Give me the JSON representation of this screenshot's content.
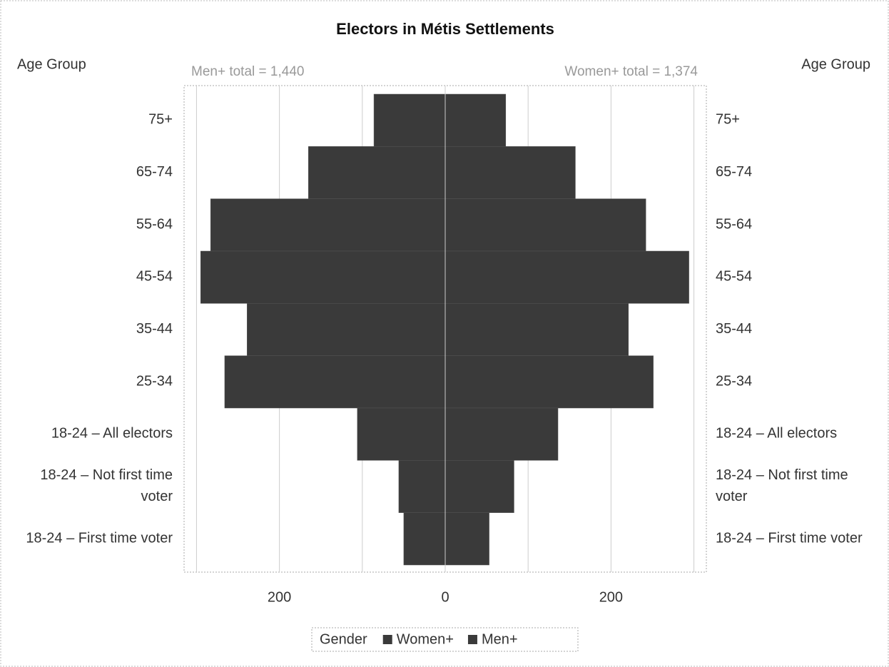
{
  "chart_data": {
    "type": "pyramid",
    "title": "Electors in Métis Settlements",
    "y_axis_label_left": "Age Group",
    "y_axis_label_right": "Age Group",
    "annotations": [
      "Men+ total = 1,440",
      "Women+ total = 1,374"
    ],
    "categories": [
      "75+",
      "65-74",
      "55-64",
      "45-54",
      "35-44",
      "25-34",
      "18-24 – All electors",
      "18-24 – Not first time voter",
      "18-24 – First time voter"
    ],
    "series": [
      {
        "name": "Women+",
        "color": "#3a3a3a",
        "side": "right",
        "values": [
          73,
          157,
          242,
          294,
          221,
          251,
          136,
          83,
          53
        ]
      },
      {
        "name": "Men+",
        "color": "#3a3a3a",
        "side": "left",
        "values": [
          86,
          165,
          283,
          295,
          239,
          266,
          106,
          56,
          50
        ]
      }
    ],
    "legend_title": "Gender",
    "legend_position": "bottom",
    "xlim": [
      -315,
      315
    ],
    "xticks": [
      {
        "value": -200,
        "label": "200"
      },
      0,
      200
    ],
    "minor_xticks": [
      -300,
      -100,
      100,
      300
    ],
    "grid": true
  }
}
